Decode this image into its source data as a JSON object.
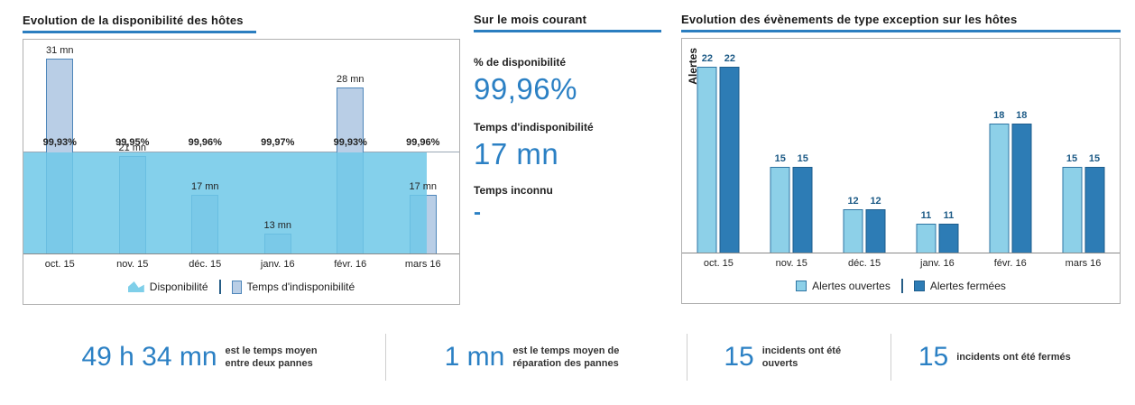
{
  "colors": {
    "accent_blue": "#2b7ec0",
    "big_number_blue": "#2b80c4",
    "area_fill": "#7fcfe9",
    "downtime_bar_fill": "#b9cee6",
    "downtime_bar_border": "#4e86ba",
    "open_alerts_fill": "#8dd0e8",
    "closed_alerts_fill": "#2d7cb5",
    "count_label_blue": "#1c5a86"
  },
  "middle_panel": {
    "title": "Sur le mois courant",
    "availability_label": "% de disponibilité",
    "availability_value": "99,96%",
    "downtime_label": "Temps d'indisponibilité",
    "downtime_value": "17 mn",
    "unknown_label": "Temps inconnu",
    "unknown_value": "-"
  },
  "chart_data": [
    {
      "type": "bar",
      "subtype": "bars-with-area-overlay",
      "title": "Evolution de la disponibilité des hôtes",
      "categories": [
        "oct. 15",
        "nov. 15",
        "déc. 15",
        "janv. 16",
        "févr. 16",
        "mars 16"
      ],
      "series": [
        {
          "name": "Disponibilité",
          "render": "area",
          "unit": "%",
          "values": [
            99.93,
            99.95,
            99.96,
            99.97,
            99.93,
            99.96
          ],
          "labels": [
            "99,93%",
            "99,95%",
            "99,96%",
            "99,97%",
            "99,93%",
            "99,96%"
          ]
        },
        {
          "name": "Temps d'indisponibilité",
          "render": "bar",
          "unit": "mn",
          "values": [
            31,
            21,
            17,
            13,
            28,
            17
          ],
          "labels": [
            "31 mn",
            "21 mn",
            "17 mn",
            "13 mn",
            "28 mn",
            "17 mn"
          ]
        }
      ],
      "bar_ylim": [
        11,
        33
      ],
      "grid": "single-horizontal-line",
      "legend_position": "bottom"
    },
    {
      "type": "bar",
      "title": "Evolution des évènements de type exception sur les hôtes",
      "ylabel": "Alertes",
      "categories": [
        "oct. 15",
        "nov. 15",
        "déc. 15",
        "janv. 16",
        "févr. 16",
        "mars 16"
      ],
      "series": [
        {
          "name": "Alertes ouvertes",
          "values": [
            22,
            15,
            12,
            11,
            18,
            15
          ]
        },
        {
          "name": "Alertes fermées",
          "values": [
            22,
            15,
            12,
            11,
            18,
            15
          ]
        }
      ],
      "ylim": [
        9,
        24
      ],
      "grid": "off",
      "legend_position": "bottom"
    }
  ],
  "kpis": [
    {
      "value": "49 h 34 mn",
      "description": "est le temps moyen entre deux pannes"
    },
    {
      "value": "1 mn",
      "description": "est le temps moyen de réparation des pannes"
    },
    {
      "value": "15",
      "description": "incidents ont été ouverts"
    },
    {
      "value": "15",
      "description": "incidents ont été fermés"
    }
  ]
}
